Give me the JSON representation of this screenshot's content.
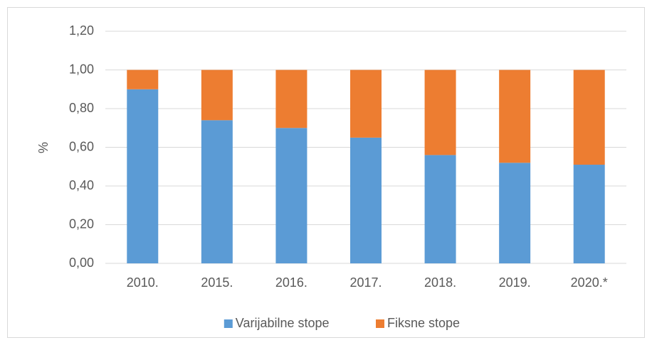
{
  "chart_data": {
    "type": "stacked_bar",
    "y_label": "%",
    "categories": [
      "2010.",
      "2015.",
      "2016.",
      "2017.",
      "2018.",
      "2019.",
      "2020.*"
    ],
    "series": [
      {
        "name": "Varijabilne stope",
        "color": "#5b9bd5",
        "values": [
          0.9,
          0.74,
          0.7,
          0.65,
          0.56,
          0.52,
          0.51
        ]
      },
      {
        "name": "Fiksne stope",
        "color": "#ed7d31",
        "values": [
          0.1,
          0.26,
          0.3,
          0.35,
          0.44,
          0.48,
          0.49
        ]
      }
    ],
    "ylim": [
      0,
      1.2
    ],
    "yticks": [
      {
        "value": 0,
        "label": "0,00"
      },
      {
        "value": 0.2,
        "label": "0,20"
      },
      {
        "value": 0.4,
        "label": "0,40"
      },
      {
        "value": 0.6,
        "label": "0,60"
      },
      {
        "value": 0.8,
        "label": "0,80"
      },
      {
        "value": 1.0,
        "label": "1,00"
      },
      {
        "value": 1.2,
        "label": "1,20"
      }
    ],
    "grid": true,
    "legend": "bottom"
  }
}
